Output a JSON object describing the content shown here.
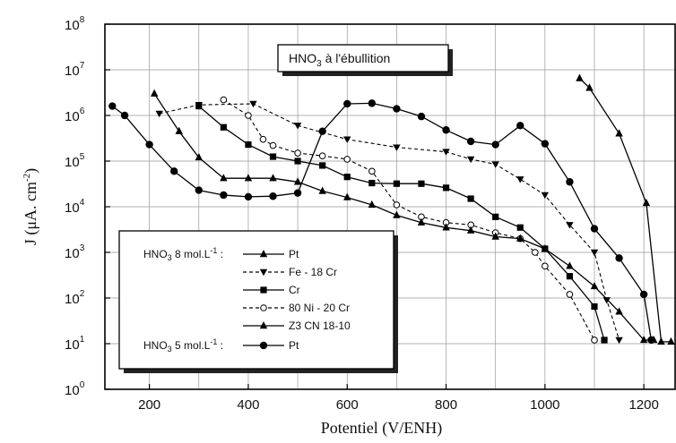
{
  "chart_data": {
    "type": "line",
    "title": "",
    "annotation": {
      "main": "HNO",
      "sub": "3",
      "rest": " à l'ébullition"
    },
    "xlabel": "Potentiel (V/ENH)",
    "ylabel": {
      "main": "J  (μA. cm",
      "sup": "-2",
      "end": ")"
    },
    "xlim": [
      110,
      1265
    ],
    "ylim_log10": [
      0,
      8
    ],
    "y_scale": "log",
    "grid": true,
    "x_ticks": [
      200,
      400,
      600,
      800,
      1000,
      1200
    ],
    "y_ticks": [
      {
        "base": "10",
        "exp": "0"
      },
      {
        "base": "10",
        "exp": "1"
      },
      {
        "base": "10",
        "exp": "2"
      },
      {
        "base": "10",
        "exp": "3"
      },
      {
        "base": "10",
        "exp": "4"
      },
      {
        "base": "10",
        "exp": "5"
      },
      {
        "base": "10",
        "exp": "6"
      },
      {
        "base": "10",
        "exp": "7"
      },
      {
        "base": "10",
        "exp": "8"
      }
    ],
    "legend": {
      "placement": "bottom-left",
      "groups": [
        {
          "main": "HNO",
          "sub": "3",
          "rest": " 8 mol.L",
          "sup": "-1",
          "end": " :"
        },
        {
          "main": "HNO",
          "sub": "3",
          "rest": " 5 mol.L",
          "sup": "-1",
          "end": " :"
        }
      ]
    },
    "series": [
      {
        "name": "Pt",
        "group": 0,
        "marker": "triangle",
        "line": "solid",
        "points": [
          [
            1070,
            6500000
          ],
          [
            1090,
            4000000
          ],
          [
            1150,
            400000
          ],
          [
            1205,
            12000
          ],
          [
            1235,
            11
          ],
          [
            1255,
            11
          ]
        ]
      },
      {
        "name": "Fe - 18 Cr",
        "group": 0,
        "marker": "triangle-down",
        "line": "dashed",
        "points": [
          [
            220,
            1100000
          ],
          [
            300,
            1700000
          ],
          [
            410,
            1800000
          ],
          [
            500,
            600000
          ],
          [
            600,
            300000
          ],
          [
            700,
            200000
          ],
          [
            800,
            160000
          ],
          [
            850,
            110000
          ],
          [
            900,
            85000
          ],
          [
            950,
            40000
          ],
          [
            1000,
            18000
          ],
          [
            1050,
            4000
          ],
          [
            1100,
            1000
          ],
          [
            1125,
            90
          ],
          [
            1150,
            12
          ]
        ]
      },
      {
        "name": "Cr",
        "group": 0,
        "marker": "square",
        "line": "solid",
        "points": [
          [
            300,
            1600000
          ],
          [
            350,
            550000
          ],
          [
            400,
            230000
          ],
          [
            450,
            125000
          ],
          [
            500,
            100000
          ],
          [
            550,
            80000
          ],
          [
            600,
            45000
          ],
          [
            650,
            33000
          ],
          [
            700,
            32000
          ],
          [
            750,
            32000
          ],
          [
            800,
            26000
          ],
          [
            850,
            15000
          ],
          [
            900,
            6000
          ],
          [
            950,
            3500
          ],
          [
            1000,
            1200
          ],
          [
            1050,
            300
          ],
          [
            1100,
            65
          ],
          [
            1120,
            12
          ]
        ]
      },
      {
        "name": "80 Ni - 20 Cr",
        "group": 0,
        "marker": "circle-open",
        "line": "dashed",
        "points": [
          [
            350,
            2200000
          ],
          [
            400,
            1000000
          ],
          [
            430,
            300000
          ],
          [
            450,
            220000
          ],
          [
            500,
            150000
          ],
          [
            550,
            130000
          ],
          [
            600,
            110000
          ],
          [
            650,
            60000
          ],
          [
            700,
            11000
          ],
          [
            750,
            6000
          ],
          [
            800,
            4500
          ],
          [
            850,
            4000
          ],
          [
            900,
            2700
          ],
          [
            950,
            2000
          ],
          [
            980,
            1000
          ],
          [
            1000,
            500
          ],
          [
            1050,
            120
          ],
          [
            1100,
            12
          ]
        ]
      },
      {
        "name": "Z3 CN 18-10",
        "group": 0,
        "marker": "triangle",
        "line": "solid",
        "points": [
          [
            210,
            3000000
          ],
          [
            260,
            450000
          ],
          [
            300,
            120000
          ],
          [
            350,
            42000
          ],
          [
            400,
            42000
          ],
          [
            450,
            42000
          ],
          [
            500,
            35000
          ],
          [
            550,
            22000
          ],
          [
            600,
            16000
          ],
          [
            650,
            11000
          ],
          [
            700,
            6500
          ],
          [
            750,
            4500
          ],
          [
            800,
            3500
          ],
          [
            850,
            3000
          ],
          [
            900,
            2200
          ],
          [
            950,
            2000
          ],
          [
            1000,
            1200
          ],
          [
            1050,
            500
          ],
          [
            1100,
            180
          ],
          [
            1150,
            50
          ],
          [
            1200,
            12
          ],
          [
            1220,
            12
          ]
        ]
      },
      {
        "name": "Pt",
        "group": 1,
        "marker": "circle",
        "line": "solid",
        "points": [
          [
            125,
            1600000
          ],
          [
            150,
            1000000
          ],
          [
            200,
            230000
          ],
          [
            250,
            60000
          ],
          [
            300,
            23000
          ],
          [
            350,
            18000
          ],
          [
            400,
            16500
          ],
          [
            450,
            17000
          ],
          [
            500,
            20000
          ],
          [
            550,
            450000
          ],
          [
            600,
            1800000
          ],
          [
            650,
            1850000
          ],
          [
            700,
            1400000
          ],
          [
            750,
            950000
          ],
          [
            800,
            480000
          ],
          [
            850,
            270000
          ],
          [
            900,
            230000
          ],
          [
            950,
            600000
          ],
          [
            1000,
            240000
          ],
          [
            1050,
            35000
          ],
          [
            1100,
            3300
          ],
          [
            1150,
            750
          ],
          [
            1200,
            120
          ],
          [
            1215,
            12
          ]
        ]
      }
    ]
  }
}
